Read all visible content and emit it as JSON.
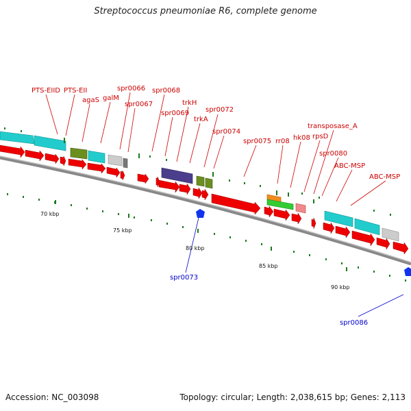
{
  "title": "Streptococcus pneumoniae R6, complete genome",
  "footer": {
    "accession": "Accession: NC_003098",
    "summary": "Topology: circular; Length: 2,038,615 bp; Genes: 2,113"
  },
  "colors": {
    "cds": "#ee0000",
    "pts": "#22cccc",
    "olive": "#6b8f1e",
    "grey": "#cccccc",
    "purple": "#4b3e8c",
    "orange": "#f08c1e",
    "green": "#33cc33",
    "pink": "#f08a8a",
    "backbone": "#888888",
    "label_red": "#cc0000",
    "label_blue": "#0000cc",
    "marker": "#1a7a1a"
  },
  "scale_labels": [
    "70 kbp",
    "75 kbp",
    "80 kbp",
    "85 kbp",
    "90 kbp"
  ],
  "gene_labels": {
    "top": [
      "PTS-EIID",
      "PTS-EII",
      "agaS",
      "galM",
      "spr0066",
      "spr0067",
      "spr0068",
      "spr0069",
      "trkH",
      "trkA",
      "spr0072",
      "spr0074",
      "spr0075",
      "rr08",
      "hk08",
      "rpsD",
      "transposase_A",
      "spr0080",
      "ABC-MSP",
      "ABC-MSP"
    ],
    "bottom": [
      "spr0073",
      "spr0086"
    ]
  }
}
